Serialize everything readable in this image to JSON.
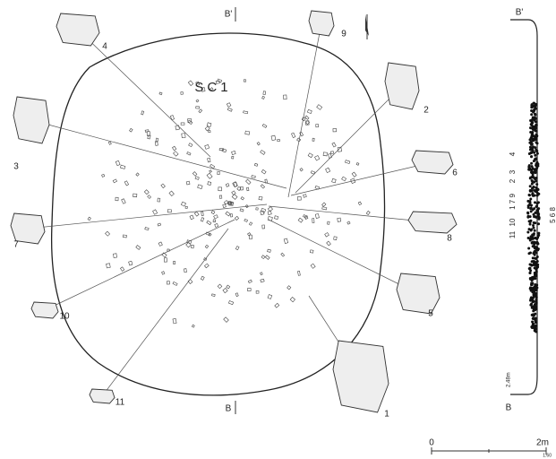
{
  "plan_title": "SC1",
  "section_marks": {
    "plan_top": "B'",
    "plan_bottom": "B",
    "profile_top": "B'",
    "profile_bottom": "B",
    "profile_elevation": "2.48m"
  },
  "artifacts": [
    {
      "label": "1"
    },
    {
      "label": "2"
    },
    {
      "label": "3"
    },
    {
      "label": "4"
    },
    {
      "label": "5"
    },
    {
      "label": "6"
    },
    {
      "label": "7"
    },
    {
      "label": "8"
    },
    {
      "label": "9"
    },
    {
      "label": "10"
    },
    {
      "label": "11"
    }
  ],
  "profile_labels": [
    "4",
    "3",
    "2",
    "1 7 9",
    "10",
    "11",
    "5 6 8"
  ],
  "scale": {
    "start": "0",
    "end": "2m",
    "ratio": "1:60"
  }
}
